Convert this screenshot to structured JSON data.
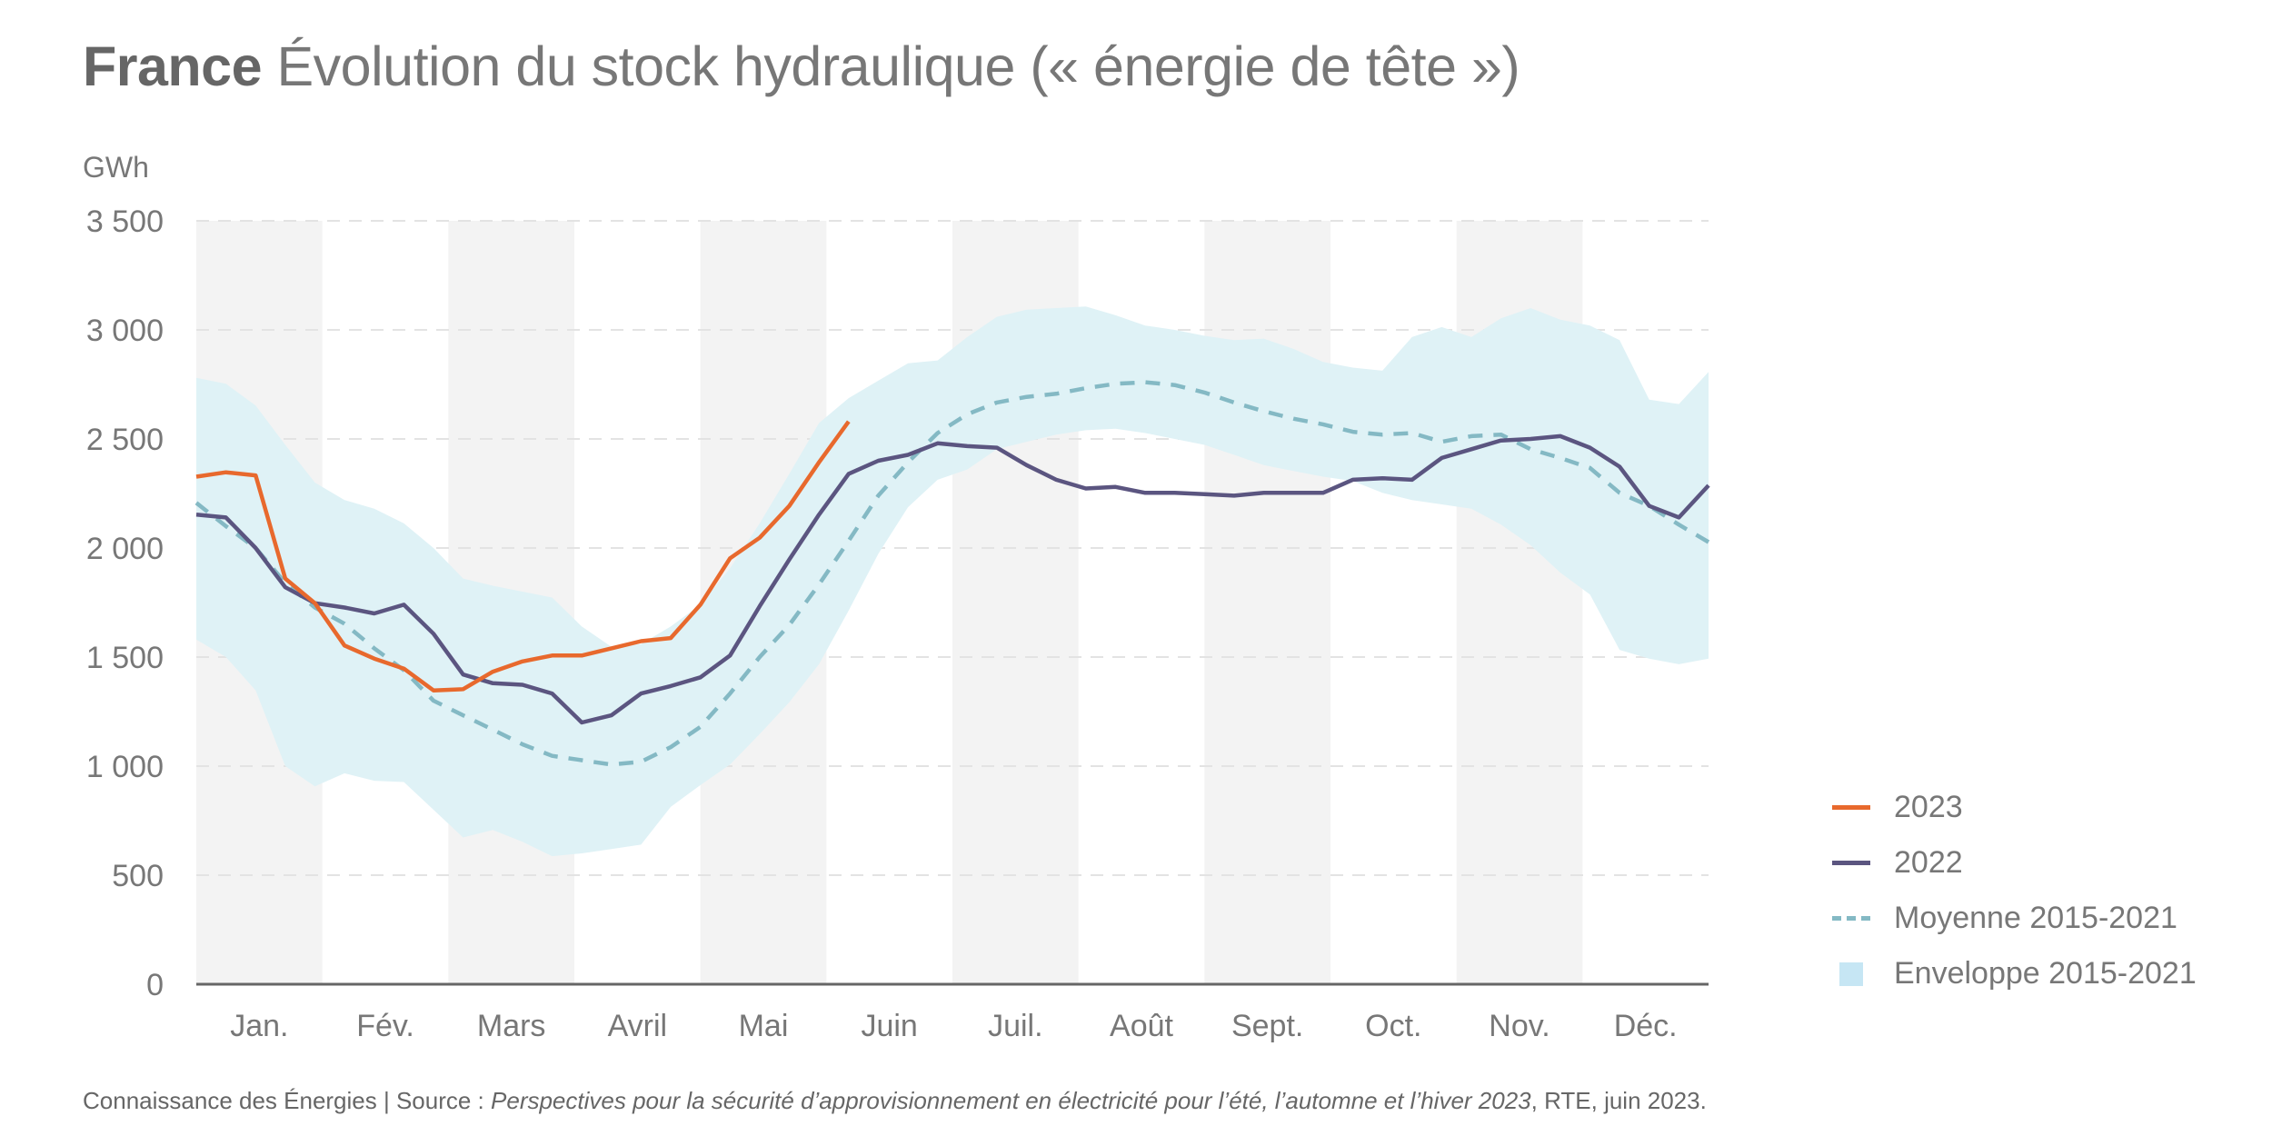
{
  "header": {
    "title_bold": "France",
    "title_rest": "Évolution du stock hydraulique (« énergie de tête »)",
    "unit": "GWh"
  },
  "footer": {
    "prefix": "Connaissance des Énergies | Source : ",
    "italic": "Perspectives pour la sécurité d’approvisionnement en électricité pour l’été, l’automne et l’hiver 2023",
    "suffix": ", RTE, juin 2023."
  },
  "colors": {
    "s2023": "#e8692d",
    "s2022": "#5b5580",
    "mean": "#84b9c4",
    "envelope": "#dff2f6",
    "legend_envelope": "#c6e6f4",
    "month_band": "#f3f3f3",
    "grid": "#e3e3e3",
    "axis": "#666666"
  },
  "legend": [
    {
      "label": "2023",
      "type": "line",
      "key": "s2023"
    },
    {
      "label": "2022",
      "type": "line",
      "key": "s2022"
    },
    {
      "label": "Moyenne 2015-2021",
      "type": "dash",
      "key": "mean"
    },
    {
      "label": "Enveloppe 2015-2021",
      "type": "box",
      "key": "envelope"
    }
  ],
  "chart_data": {
    "type": "line",
    "title": "France Évolution du stock hydraulique (« énergie de tête »)",
    "xlabel": "",
    "ylabel": "GWh",
    "ylim": [
      0,
      3500
    ],
    "yticks": [
      0,
      500,
      1000,
      1500,
      2000,
      2500,
      3000,
      3500
    ],
    "ytick_labels": [
      "0",
      "500",
      "1 000",
      "1 500",
      "2 000",
      "2 500",
      "3 000",
      "3 500"
    ],
    "grid": true,
    "legend_position": "right",
    "x_unit": "week",
    "x_range": [
      1,
      52
    ],
    "month_labels": [
      "Jan.",
      "Fév.",
      "Mars",
      "Avril",
      "Mai",
      "Juin",
      "Juil.",
      "Août",
      "Sept.",
      "Oct.",
      "Nov.",
      "Déc."
    ],
    "series": [
      {
        "name": "2023",
        "key": "s2023",
        "style": "solid",
        "values": [
          2327,
          2347,
          2333,
          1860,
          1747,
          1553,
          1493,
          1447,
          1347,
          1353,
          1433,
          1480,
          1507,
          1507,
          1540,
          1573,
          1587,
          1740,
          1953,
          2047,
          2193,
          2393,
          2580
        ]
      },
      {
        "name": "2022",
        "key": "s2022",
        "style": "solid",
        "values": [
          2153,
          2140,
          2000,
          1820,
          1747,
          1727,
          1700,
          1740,
          1607,
          1420,
          1380,
          1373,
          1333,
          1200,
          1233,
          1333,
          1367,
          1407,
          1507,
          1733,
          1947,
          2153,
          2340,
          2400,
          2427,
          2480,
          2467,
          2460,
          2380,
          2313,
          2273,
          2280,
          2253,
          2253,
          2247,
          2240,
          2253,
          2253,
          2253,
          2313,
          2320,
          2313,
          2413,
          2453,
          2493,
          2500,
          2513,
          2460,
          2373,
          2193,
          2140,
          2287
        ]
      },
      {
        "name": "Moyenne 2015-2021",
        "key": "mean",
        "style": "dashed",
        "values": [
          2207,
          2100,
          2000,
          1840,
          1727,
          1653,
          1540,
          1440,
          1300,
          1233,
          1167,
          1100,
          1047,
          1027,
          1007,
          1020,
          1087,
          1180,
          1333,
          1500,
          1647,
          1833,
          2033,
          2240,
          2393,
          2527,
          2613,
          2667,
          2693,
          2707,
          2733,
          2753,
          2760,
          2747,
          2713,
          2667,
          2627,
          2593,
          2567,
          2533,
          2520,
          2527,
          2487,
          2513,
          2520,
          2453,
          2413,
          2367,
          2253,
          2193,
          2107,
          2027
        ]
      },
      {
        "name": "Enveloppe 2015-2021 (max)",
        "key": "envelope_max",
        "style": "area-upper",
        "values": [
          2780,
          2753,
          2653,
          2473,
          2300,
          2220,
          2180,
          2113,
          2000,
          1860,
          1827,
          1800,
          1773,
          1640,
          1547,
          1560,
          1640,
          1740,
          1907,
          2113,
          2340,
          2573,
          2687,
          2767,
          2847,
          2860,
          2967,
          3060,
          3093,
          3100,
          3107,
          3067,
          3020,
          3000,
          2973,
          2953,
          2960,
          2913,
          2853,
          2827,
          2813,
          2967,
          3013,
          2967,
          3053,
          3100,
          3047,
          3020,
          2953,
          2680,
          2660,
          2807
        ]
      },
      {
        "name": "Enveloppe 2015-2021 (min)",
        "key": "envelope_min",
        "style": "area-lower",
        "values": [
          1580,
          1500,
          1347,
          1000,
          907,
          967,
          933,
          927,
          800,
          673,
          707,
          653,
          587,
          600,
          620,
          640,
          813,
          913,
          1007,
          1147,
          1293,
          1467,
          1713,
          1973,
          2187,
          2313,
          2360,
          2453,
          2487,
          2520,
          2540,
          2547,
          2527,
          2500,
          2473,
          2427,
          2380,
          2353,
          2327,
          2307,
          2253,
          2220,
          2200,
          2180,
          2107,
          2013,
          1887,
          1787,
          1533,
          1493,
          1467,
          1493
        ]
      }
    ]
  }
}
